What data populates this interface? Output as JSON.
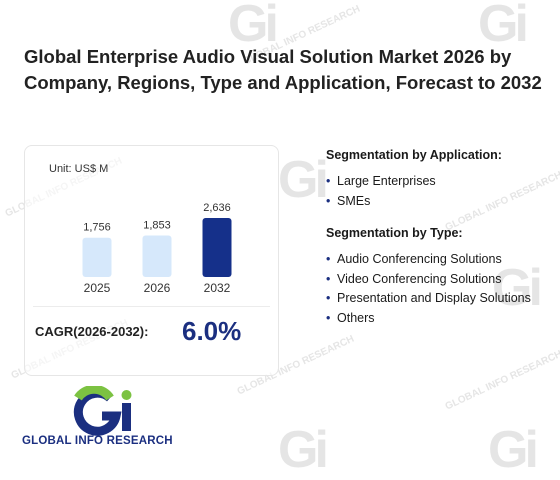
{
  "title": "Global Enterprise Audio Visual Solution Market 2026 by Company, Regions, Type and Application, Forecast to 2032",
  "unit": "Unit: US$ M",
  "cagr_label": "CAGR(2026-2032):",
  "cagr_value": "6.0%",
  "application": {
    "heading": "Segmentation by Application:",
    "items": [
      "Large Enterprises",
      "SMEs"
    ]
  },
  "type": {
    "heading": "Segmentation by Type:",
    "items": [
      "Audio Conferencing Solutions",
      "Video Conferencing Solutions",
      "Presentation and Display Solutions",
      "Others"
    ]
  },
  "logo": {
    "text": "GLOBAL INFO RESEARCH"
  },
  "watermark_text": "GLOBAL INFO RESEARCH",
  "colors": {
    "bar_light": "#d6e8fb",
    "bar_highlight": "#15308a",
    "accent": "#1b2f80"
  },
  "chart_data": {
    "type": "bar",
    "categories": [
      "2025",
      "2026",
      "2032"
    ],
    "values": [
      1756,
      1853,
      2636
    ],
    "value_labels": [
      "1,756",
      "1,853",
      "2,636"
    ],
    "ylim": [
      0,
      2800
    ]
  }
}
